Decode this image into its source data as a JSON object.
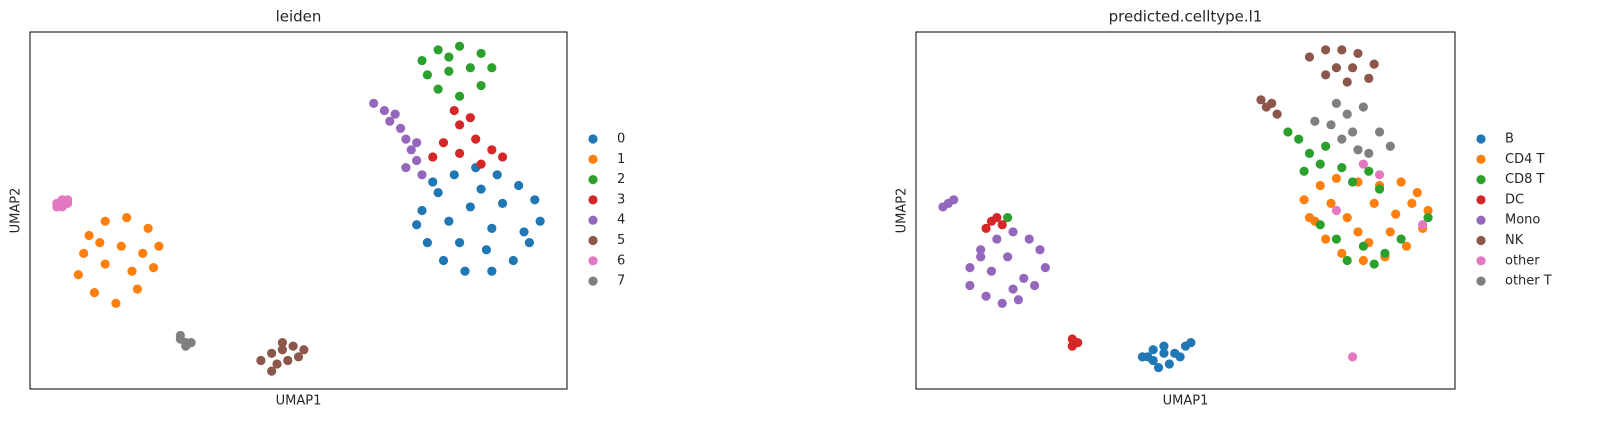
{
  "chart_data": [
    {
      "type": "scatter",
      "title": "leiden",
      "x_label": "UMAP1",
      "y_label": "UMAP2",
      "xlim": [
        0,
        100
      ],
      "ylim": [
        0,
        100
      ],
      "series": [
        {
          "name": "0",
          "color": "#1f77b4",
          "x": [
            73,
            76,
            79,
            83,
            87,
            91,
            94,
            95,
            93,
            90,
            86,
            81,
            77,
            74,
            72,
            78,
            82,
            86,
            80,
            88,
            84,
            75,
            92,
            85
          ],
          "y": [
            50,
            55,
            60,
            62,
            60,
            57,
            53,
            47,
            41,
            36,
            33,
            33,
            36,
            41,
            46,
            47,
            51,
            45,
            41,
            52,
            56,
            58,
            44,
            39
          ]
        },
        {
          "name": "1",
          "color": "#ff7f0e",
          "x": [
            10,
            11,
            14,
            18,
            22,
            24,
            23,
            20,
            16,
            12,
            9,
            14,
            17,
            19,
            13,
            21
          ],
          "y": [
            38,
            43,
            47,
            48,
            45,
            40,
            34,
            28,
            24,
            27,
            32,
            35,
            40,
            33,
            41,
            38
          ]
        },
        {
          "name": "2",
          "color": "#2ca02c",
          "x": [
            73,
            76,
            80,
            84,
            86,
            84,
            80,
            76,
            74,
            78,
            82,
            78
          ],
          "y": [
            92,
            95,
            96,
            94,
            90,
            85,
            82,
            84,
            88,
            89,
            90,
            93
          ]
        },
        {
          "name": "3",
          "color": "#d62728",
          "x": [
            79,
            80,
            77,
            75,
            80,
            83,
            86,
            88,
            84,
            82
          ],
          "y": [
            78,
            74,
            69,
            65,
            66,
            70,
            67,
            65,
            63,
            76
          ]
        },
        {
          "name": "4",
          "color": "#9467bd",
          "x": [
            64,
            66,
            67,
            69,
            70,
            71,
            72,
            73,
            70,
            68,
            72
          ],
          "y": [
            80,
            78,
            75,
            73,
            70,
            67,
            64,
            60,
            62,
            77,
            69
          ]
        },
        {
          "name": "5",
          "color": "#8c564b",
          "x": [
            43,
            45,
            47,
            49,
            51,
            48,
            46,
            45,
            47,
            50
          ],
          "y": [
            8,
            10,
            11,
            12,
            11,
            8,
            7,
            5,
            13,
            9
          ]
        },
        {
          "name": "6",
          "color": "#e377c2",
          "x": [
            5,
            6,
            7,
            6,
            5,
            7
          ],
          "y": [
            52,
            53,
            52,
            51,
            51,
            53
          ]
        },
        {
          "name": "7",
          "color": "#7f7f7f",
          "x": [
            28,
            29,
            29,
            30,
            28
          ],
          "y": [
            14,
            13,
            12,
            13,
            15
          ]
        }
      ]
    },
    {
      "type": "scatter",
      "title": "predicted.celltype.l1",
      "x_label": "UMAP1",
      "y_label": "UMAP2",
      "xlim": [
        0,
        100
      ],
      "ylim": [
        0,
        100
      ],
      "series": [
        {
          "name": "B",
          "color": "#1f77b4",
          "x": [
            43,
            44,
            46,
            48,
            50,
            51,
            47,
            45,
            44,
            46,
            49,
            42
          ],
          "y": [
            9,
            11,
            12,
            10,
            12,
            13,
            7,
            6,
            8,
            10,
            9,
            9
          ]
        },
        {
          "name": "CD4 T",
          "color": "#ff7f0e",
          "x": [
            72,
            75,
            78,
            82,
            86,
            90,
            93,
            95,
            94,
            91,
            87,
            83,
            79,
            76,
            74,
            80,
            85,
            89,
            82,
            77,
            88,
            84,
            92,
            73
          ],
          "y": [
            53,
            57,
            59,
            58,
            57,
            58,
            55,
            50,
            45,
            40,
            37,
            36,
            38,
            42,
            47,
            48,
            52,
            49,
            44,
            52,
            44,
            41,
            52,
            48
          ]
        },
        {
          "name": "CD8 T",
          "color": "#2ca02c",
          "x": [
            69,
            71,
            73,
            75,
            72,
            76,
            79,
            81,
            84,
            86,
            78,
            83,
            87,
            90,
            80,
            85,
            75,
            95,
            17
          ],
          "y": [
            72,
            70,
            66,
            63,
            61,
            68,
            62,
            58,
            61,
            56,
            42,
            40,
            38,
            42,
            36,
            35,
            46,
            48,
            48
          ]
        },
        {
          "name": "DC",
          "color": "#d62728",
          "x": [
            14,
            15,
            16,
            13,
            29,
            30,
            29
          ],
          "y": [
            47,
            48,
            46,
            45,
            14,
            13,
            12
          ]
        },
        {
          "name": "Mono",
          "color": "#9467bd",
          "x": [
            10,
            12,
            15,
            18,
            21,
            23,
            24,
            22,
            19,
            16,
            13,
            10,
            14,
            17,
            20,
            12,
            18,
            6,
            5,
            7
          ],
          "y": [
            34,
            39,
            42,
            44,
            42,
            39,
            34,
            29,
            25,
            24,
            26,
            29,
            33,
            37,
            31,
            37,
            28,
            52,
            51,
            53
          ]
        },
        {
          "name": "NK",
          "color": "#8c564b",
          "x": [
            73,
            76,
            79,
            82,
            85,
            84,
            80,
            76,
            78,
            81,
            64,
            66,
            67,
            65
          ],
          "y": [
            93,
            95,
            95,
            94,
            91,
            87,
            86,
            88,
            90,
            90,
            81,
            80,
            77,
            79
          ]
        },
        {
          "name": "other",
          "color": "#e377c2",
          "x": [
            83,
            86,
            78,
            94,
            81
          ],
          "y": [
            63,
            60,
            50,
            46,
            9
          ]
        },
        {
          "name": "other T",
          "color": "#7f7f7f",
          "x": [
            78,
            80,
            83,
            86,
            88,
            81,
            79,
            84,
            77,
            82,
            74
          ],
          "y": [
            80,
            77,
            79,
            72,
            68,
            72,
            70,
            66,
            74,
            67,
            75
          ]
        }
      ]
    }
  ]
}
